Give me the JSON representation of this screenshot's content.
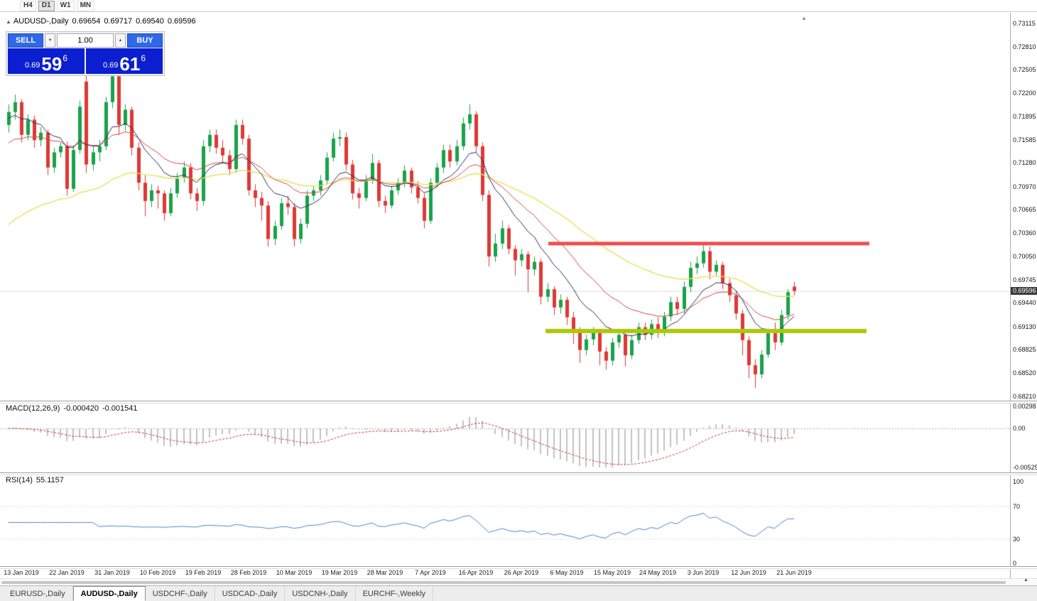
{
  "toolbar": {
    "timeframes": [
      "H4",
      "D1",
      "W1",
      "MN"
    ],
    "active": "D1"
  },
  "chart_header": {
    "symbol": "AUDUSD-,Daily",
    "open": "0.69654",
    "high": "0.69717",
    "low": "0.69540",
    "close": "0.69596"
  },
  "icons": {
    "panel_toggle": "▲",
    "chart_shift_marker": "▲",
    "volume_decrease": "▼",
    "volume_increase": "▲",
    "corner_marker": "▲"
  },
  "trade_panel": {
    "sell_label": "SELL",
    "buy_label": "BUY",
    "volume": "1.00",
    "bid": {
      "prefix": "0.69",
      "big": "59",
      "sup": "6"
    },
    "ask": {
      "prefix": "0.69",
      "big": "61",
      "sup": "6"
    }
  },
  "price_axis": {
    "labels": [
      "0.73115",
      "0.72810",
      "0.72505",
      "0.72200",
      "0.71895",
      "0.71585",
      "0.71280",
      "0.70970",
      "0.70665",
      "0.70360",
      "0.70050",
      "0.69745",
      "0.69440",
      "0.69130",
      "0.68825",
      "0.68520",
      "0.68210"
    ],
    "current_badge": "0.69596"
  },
  "macd_panel": {
    "label": "MACD(12,26,9)",
    "main_value": "-0.000420",
    "signal_value": "-0.001541",
    "axis_labels": [
      "0.00298",
      "0.00",
      "-0.00525"
    ]
  },
  "rsi_panel": {
    "label": "RSI(14)",
    "value": "55.1157",
    "axis_labels": [
      "100",
      "70",
      "30",
      "0"
    ]
  },
  "date_axis": {
    "labels": [
      "13 Jan 2019",
      "22 Jan 2019",
      "31 Jan 2019",
      "10 Feb 2019",
      "19 Feb 2019",
      "28 Feb 2019",
      "10 Mar 2019",
      "19 Mar 2019",
      "28 Mar 2019",
      "7 Apr 2019",
      "16 Apr 2019",
      "26 Apr 2019",
      "6 May 2019",
      "15 May 2019",
      "24 May 2019",
      "3 Jun 2019",
      "12 Jun 2019",
      "21 Jun 2019"
    ]
  },
  "tabs": [
    {
      "label": "EURUSD-,Daily",
      "active": false
    },
    {
      "label": "AUDUSD-,Daily",
      "active": true
    },
    {
      "label": "USDCHF-,Daily",
      "active": false
    },
    {
      "label": "USDCAD-,Daily",
      "active": false
    },
    {
      "label": "USDCNH-,Daily",
      "active": false
    },
    {
      "label": "EURCHF-,Weekly",
      "active": false
    }
  ],
  "chart_data": {
    "type": "candlestick",
    "symbol": "AUDUSD-,Daily",
    "timeframe": "Daily",
    "ylim": [
      0.6821,
      0.73115
    ],
    "overlays": {
      "resistance_line": 0.7022,
      "support_line": 0.6907,
      "moving_averages": [
        {
          "period": 10,
          "color": "#232E63"
        },
        {
          "period": 20,
          "color": "#CC4A42"
        },
        {
          "period": 45,
          "color": "#E9E159"
        }
      ]
    },
    "subcharts": [
      {
        "type": "macd",
        "params": [
          12,
          26,
          9
        ],
        "last_main": -0.00042,
        "last_signal": -0.001541,
        "range": [
          -0.00525,
          0.00298
        ]
      },
      {
        "type": "rsi",
        "params": [
          14
        ],
        "last": 55.1157,
        "range": [
          0,
          100
        ],
        "levels": [
          30,
          70
        ]
      }
    ],
    "colors": {
      "bull": "#18A348",
      "bear": "#DF3834",
      "ma_fast": "#232E63",
      "ma_mid": "#CC4A42",
      "ma_slow": "#E9E159",
      "hline_red": "#EF4C4C",
      "hline_green": "#ADC70B",
      "macd_hist": "#C2C2C2",
      "macd_signal": "#C23B3B",
      "rsi_line": "#4E86C6",
      "current_line": "#DCDCDC",
      "trade_button": "#2F68E8",
      "trade_box": "#0B1FD0"
    },
    "candles": [
      [
        0.7178,
        0.7205,
        0.7168,
        0.7195
      ],
      [
        0.7195,
        0.7218,
        0.7185,
        0.7208
      ],
      [
        0.7208,
        0.7212,
        0.7155,
        0.7165
      ],
      [
        0.7165,
        0.7192,
        0.7158,
        0.7185
      ],
      [
        0.7185,
        0.719,
        0.7148,
        0.7158
      ],
      [
        0.7158,
        0.7175,
        0.715,
        0.7168
      ],
      [
        0.7168,
        0.7172,
        0.7112,
        0.7122
      ],
      [
        0.7122,
        0.7148,
        0.7115,
        0.7142
      ],
      [
        0.7142,
        0.7155,
        0.7135,
        0.715
      ],
      [
        0.715,
        0.7156,
        0.7085,
        0.7094
      ],
      [
        0.7094,
        0.715,
        0.709,
        0.7145
      ],
      [
        0.7145,
        0.721,
        0.714,
        0.7202
      ],
      [
        0.7235,
        0.7246,
        0.7115,
        0.7126
      ],
      [
        0.7126,
        0.715,
        0.7118,
        0.7142
      ],
      [
        0.7142,
        0.7158,
        0.713,
        0.715
      ],
      [
        0.715,
        0.7215,
        0.7145,
        0.7208
      ],
      [
        0.7208,
        0.7248,
        0.72,
        0.7242
      ],
      [
        0.7242,
        0.7246,
        0.7165,
        0.7178
      ],
      [
        0.7178,
        0.7205,
        0.717,
        0.7198
      ],
      [
        0.7198,
        0.7202,
        0.7138,
        0.7148
      ],
      [
        0.7148,
        0.7155,
        0.7092,
        0.7102
      ],
      [
        0.7102,
        0.7112,
        0.7058,
        0.7078
      ],
      [
        0.7078,
        0.71,
        0.707,
        0.7092
      ],
      [
        0.7092,
        0.7098,
        0.7068,
        0.7088
      ],
      [
        0.7088,
        0.7092,
        0.7052,
        0.7062
      ],
      [
        0.7062,
        0.7095,
        0.7058,
        0.7088
      ],
      [
        0.7088,
        0.7115,
        0.7082,
        0.7108
      ],
      [
        0.7108,
        0.713,
        0.7102,
        0.7122
      ],
      [
        0.7122,
        0.7128,
        0.708,
        0.7088
      ],
      [
        0.7088,
        0.7095,
        0.7065,
        0.7078
      ],
      [
        0.7078,
        0.7158,
        0.7072,
        0.715
      ],
      [
        0.715,
        0.7172,
        0.7142,
        0.7165
      ],
      [
        0.7165,
        0.7172,
        0.714,
        0.7148
      ],
      [
        0.7148,
        0.7158,
        0.7128,
        0.7138
      ],
      [
        0.7138,
        0.7145,
        0.7112,
        0.712
      ],
      [
        0.712,
        0.7185,
        0.7115,
        0.7178
      ],
      [
        0.7178,
        0.7185,
        0.7152,
        0.716
      ],
      [
        0.716,
        0.7165,
        0.7085,
        0.7092
      ],
      [
        0.7092,
        0.71,
        0.707,
        0.7082
      ],
      [
        0.7082,
        0.709,
        0.7052,
        0.7072
      ],
      [
        0.7072,
        0.7078,
        0.7018,
        0.7028
      ],
      [
        0.7028,
        0.7052,
        0.702,
        0.7045
      ],
      [
        0.7045,
        0.7082,
        0.704,
        0.7075
      ],
      [
        0.7075,
        0.7085,
        0.706,
        0.707
      ],
      [
        0.707,
        0.7075,
        0.7018,
        0.7028
      ],
      [
        0.7028,
        0.7055,
        0.7022,
        0.7048
      ],
      [
        0.7048,
        0.7092,
        0.7042,
        0.7085
      ],
      [
        0.7085,
        0.7098,
        0.7078,
        0.7092
      ],
      [
        0.7092,
        0.7112,
        0.7085,
        0.7105
      ],
      [
        0.7105,
        0.7142,
        0.71,
        0.7135
      ],
      [
        0.7135,
        0.7168,
        0.713,
        0.716
      ],
      [
        0.716,
        0.7172,
        0.715,
        0.7162
      ],
      [
        0.7162,
        0.7168,
        0.7118,
        0.7126
      ],
      [
        0.7126,
        0.7132,
        0.708,
        0.7088
      ],
      [
        0.7088,
        0.7095,
        0.7068,
        0.7082
      ],
      [
        0.7082,
        0.7112,
        0.7078,
        0.7105
      ],
      [
        0.7105,
        0.714,
        0.71,
        0.7128
      ],
      [
        0.7128,
        0.7132,
        0.707,
        0.7078
      ],
      [
        0.7078,
        0.7085,
        0.7062,
        0.7072
      ],
      [
        0.7072,
        0.7098,
        0.7068,
        0.7092
      ],
      [
        0.7092,
        0.7108,
        0.7086,
        0.7102
      ],
      [
        0.7102,
        0.7125,
        0.7096,
        0.7118
      ],
      [
        0.7118,
        0.7122,
        0.7088,
        0.7096
      ],
      [
        0.7096,
        0.7104,
        0.7075,
        0.7082
      ],
      [
        0.7082,
        0.7088,
        0.7042,
        0.7052
      ],
      [
        0.7052,
        0.7108,
        0.7048,
        0.7102
      ],
      [
        0.7102,
        0.7128,
        0.7096,
        0.7122
      ],
      [
        0.7122,
        0.7152,
        0.7115,
        0.7145
      ],
      [
        0.7145,
        0.7152,
        0.7122,
        0.713
      ],
      [
        0.713,
        0.7158,
        0.7125,
        0.715
      ],
      [
        0.715,
        0.7188,
        0.7145,
        0.718
      ],
      [
        0.718,
        0.7205,
        0.7172,
        0.7192
      ],
      [
        0.7192,
        0.7196,
        0.7142,
        0.715
      ],
      [
        0.715,
        0.7155,
        0.7078,
        0.7086
      ],
      [
        0.7086,
        0.7092,
        0.6992,
        0.7005
      ],
      [
        0.7005,
        0.7035,
        0.6998,
        0.7022
      ],
      [
        0.7022,
        0.7052,
        0.7015,
        0.7042
      ],
      [
        0.7042,
        0.7046,
        0.7008,
        0.7015
      ],
      [
        0.7015,
        0.702,
        0.698,
        0.7
      ],
      [
        0.7,
        0.7015,
        0.6992,
        0.7008
      ],
      [
        0.7008,
        0.7012,
        0.6958,
        0.6988
      ],
      [
        0.6988,
        0.7005,
        0.698,
        0.6998
      ],
      [
        0.6998,
        0.7002,
        0.6942,
        0.6952
      ],
      [
        0.6952,
        0.697,
        0.6945,
        0.6962
      ],
      [
        0.6962,
        0.6966,
        0.6928,
        0.6938
      ],
      [
        0.6938,
        0.6955,
        0.693,
        0.6948
      ],
      [
        0.6948,
        0.6952,
        0.6915,
        0.6925
      ],
      [
        0.6925,
        0.6932,
        0.689,
        0.6908
      ],
      [
        0.6908,
        0.6912,
        0.6865,
        0.6882
      ],
      [
        0.6882,
        0.6902,
        0.6875,
        0.6896
      ],
      [
        0.6896,
        0.6912,
        0.6888,
        0.6906
      ],
      [
        0.6906,
        0.691,
        0.6862,
        0.688
      ],
      [
        0.688,
        0.6886,
        0.6856,
        0.6868
      ],
      [
        0.6868,
        0.6898,
        0.6862,
        0.6892
      ],
      [
        0.6892,
        0.691,
        0.6885,
        0.6902
      ],
      [
        0.6902,
        0.6906,
        0.686,
        0.6875
      ],
      [
        0.6875,
        0.6902,
        0.687,
        0.6895
      ],
      [
        0.6895,
        0.6918,
        0.689,
        0.6912
      ],
      [
        0.6912,
        0.6918,
        0.6895,
        0.6902
      ],
      [
        0.6902,
        0.6922,
        0.6896,
        0.6916
      ],
      [
        0.6916,
        0.6925,
        0.6898,
        0.6906
      ],
      [
        0.6906,
        0.6932,
        0.69,
        0.6926
      ],
      [
        0.6926,
        0.6952,
        0.692,
        0.6945
      ],
      [
        0.6945,
        0.6952,
        0.6928,
        0.6936
      ],
      [
        0.6936,
        0.6972,
        0.693,
        0.6965
      ],
      [
        0.6965,
        0.6998,
        0.6958,
        0.699
      ],
      [
        0.699,
        0.7005,
        0.6982,
        0.6996
      ],
      [
        0.6996,
        0.7022,
        0.699,
        0.7012
      ],
      [
        0.7012,
        0.7018,
        0.6975,
        0.6985
      ],
      [
        0.6985,
        0.7,
        0.698,
        0.6994
      ],
      [
        0.6994,
        0.6998,
        0.6962,
        0.697
      ],
      [
        0.697,
        0.6976,
        0.6945,
        0.6954
      ],
      [
        0.6954,
        0.696,
        0.6922,
        0.693
      ],
      [
        0.693,
        0.6935,
        0.6875,
        0.6895
      ],
      [
        0.6895,
        0.69,
        0.6845,
        0.6862
      ],
      [
        0.6862,
        0.687,
        0.6832,
        0.685
      ],
      [
        0.685,
        0.6882,
        0.6845,
        0.6876
      ],
      [
        0.6876,
        0.691,
        0.6872,
        0.6904
      ],
      [
        0.6904,
        0.6918,
        0.6882,
        0.6892
      ],
      [
        0.6892,
        0.6935,
        0.6888,
        0.6928
      ],
      [
        0.6928,
        0.6962,
        0.6922,
        0.6958
      ],
      [
        0.69654,
        0.69717,
        0.6954,
        0.69596
      ]
    ]
  }
}
